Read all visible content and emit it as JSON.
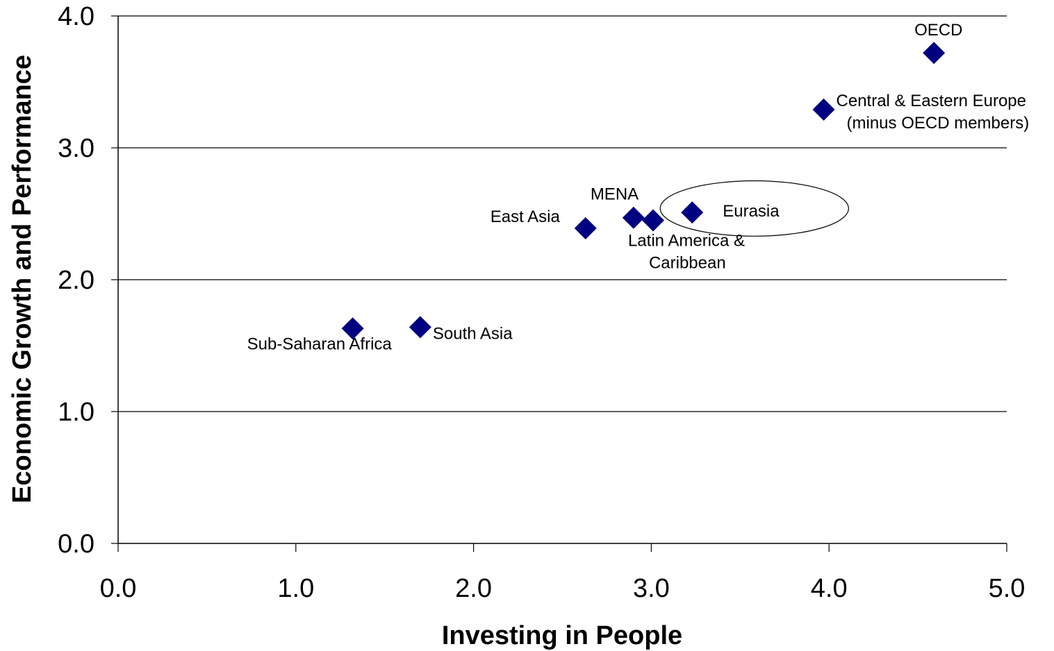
{
  "chart_data": {
    "type": "scatter",
    "title": "",
    "xlabel": "Investing in People",
    "ylabel": "Economic Growth and Performance",
    "xlim": [
      0,
      5
    ],
    "ylim": [
      0,
      4
    ],
    "x_ticks": [
      "0.0",
      "1.0",
      "2.0",
      "3.0",
      "4.0",
      "5.0"
    ],
    "y_ticks": [
      "0.0",
      "1.0",
      "2.0",
      "3.0",
      "4.0"
    ],
    "grid": "horizontal",
    "marker_color": "#000080",
    "points": [
      {
        "label": [
          "Sub-Saharan Africa"
        ],
        "x": 1.32,
        "y": 1.63
      },
      {
        "label": [
          "South Asia"
        ],
        "x": 1.7,
        "y": 1.64
      },
      {
        "label": [
          "East Asia"
        ],
        "x": 2.63,
        "y": 2.39
      },
      {
        "label": [
          "MENA"
        ],
        "x": 2.9,
        "y": 2.47
      },
      {
        "label": [
          "Latin America &",
          "Caribbean"
        ],
        "x": 3.01,
        "y": 2.45
      },
      {
        "label": [
          "Eurasia"
        ],
        "x": 3.23,
        "y": 2.51
      },
      {
        "label": [
          "Central & Eastern Europe",
          "(minus OECD members)"
        ],
        "x": 3.97,
        "y": 3.29
      },
      {
        "label": [
          "OECD"
        ],
        "x": 4.59,
        "y": 3.72
      }
    ],
    "annotations": [
      {
        "type": "ellipse",
        "around": "Eurasia",
        "center": [
          3.58,
          2.54
        ],
        "radii": [
          0.53,
          0.21
        ]
      }
    ]
  }
}
